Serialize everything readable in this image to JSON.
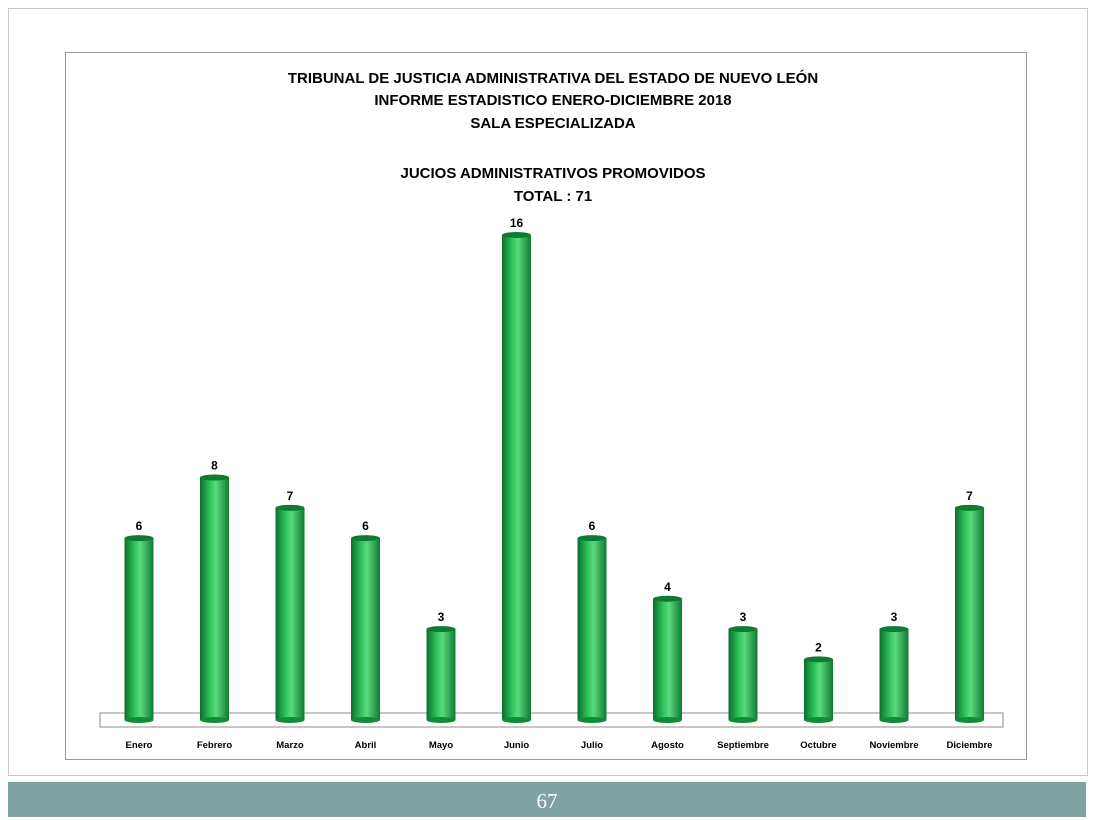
{
  "chart_data": {
    "type": "bar",
    "title_lines": [
      "TRIBUNAL DE JUSTICIA ADMINISTRATIVA DEL ESTADO DE NUEVO LEÓN",
      "INFORME ESTADISTICO   ENERO-DICIEMBRE 2018",
      "SALA ESPECIALIZADA",
      "JUCIOS ADMINISTRATIVOS PROMOVIDOS",
      "TOTAL :  71"
    ],
    "categories": [
      "Enero",
      "Febrero",
      "Marzo",
      "Abril",
      "Mayo",
      "Junio",
      "Julio",
      "Agosto",
      "Septiembre",
      "Octubre",
      "Noviembre",
      "Diciembre"
    ],
    "values": [
      6,
      8,
      7,
      6,
      3,
      16,
      6,
      4,
      3,
      2,
      3,
      7
    ],
    "ylim": [
      0,
      16
    ],
    "grid": false,
    "legend": "none",
    "bar_color": "#1ea84a"
  },
  "footer": {
    "page_number": "67"
  }
}
